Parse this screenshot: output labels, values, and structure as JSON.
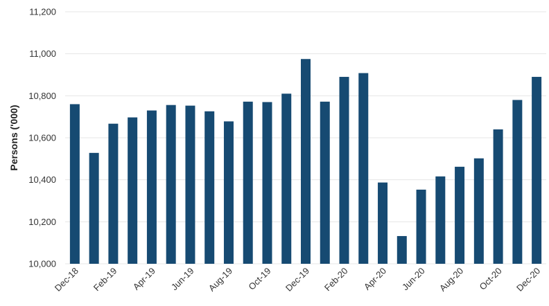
{
  "chart_data": {
    "type": "bar",
    "title": "",
    "xlabel": "",
    "ylabel": "Persons ('000)",
    "ylim": [
      10000,
      11200
    ],
    "yticks": [
      10000,
      10200,
      10400,
      10600,
      10800,
      11000,
      11200
    ],
    "ytick_labels": [
      "10,000",
      "10,200",
      "10,400",
      "10,600",
      "10,800",
      "11,000",
      "11,200"
    ],
    "grid": true,
    "bar_color": "#164a72",
    "categories": [
      "Dec-18",
      "Jan-19",
      "Feb-19",
      "Mar-19",
      "Apr-19",
      "May-19",
      "Jun-19",
      "Jul-19",
      "Aug-19",
      "Sep-19",
      "Oct-19",
      "Nov-19",
      "Dec-19",
      "Jan-20",
      "Feb-20",
      "Mar-20",
      "Apr-20",
      "May-20",
      "Jun-20",
      "Jul-20",
      "Aug-20",
      "Sep-20",
      "Oct-20",
      "Nov-20",
      "Dec-20"
    ],
    "xtick_labels": [
      "Dec-18",
      "",
      "Feb-19",
      "",
      "Apr-19",
      "",
      "Jun-19",
      "",
      "Aug-19",
      "",
      "Oct-19",
      "",
      "Dec-19",
      "",
      "Feb-20",
      "",
      "Apr-20",
      "",
      "Jun-20",
      "",
      "Aug-20",
      "",
      "Oct-20",
      "",
      "Dec-20"
    ],
    "values": [
      10760,
      10528,
      10667,
      10697,
      10730,
      10756,
      10753,
      10726,
      10678,
      10772,
      10770,
      10810,
      10975,
      10772,
      10890,
      10908,
      10387,
      10132,
      10353,
      10416,
      10462,
      10502,
      10640,
      10780,
      10890
    ]
  }
}
